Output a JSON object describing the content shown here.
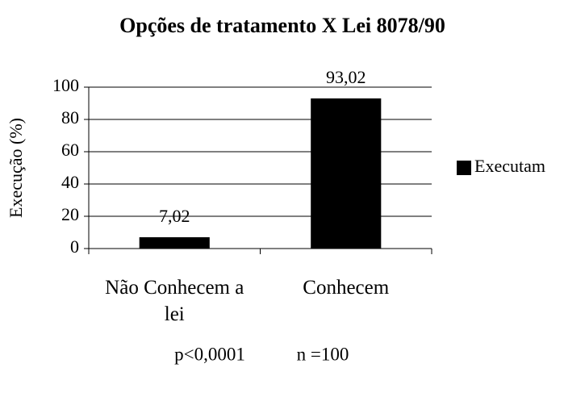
{
  "chart_data": {
    "type": "bar",
    "title": "Opções de tratamento X Lei 8078/90",
    "y_label": "Execução (%)",
    "categories": [
      "Não Conhecem a lei",
      "Conhecem"
    ],
    "series": [
      {
        "name": "Executam",
        "color": "#000000",
        "values": [
          7.02,
          93.02
        ],
        "value_labels": [
          "7,02",
          "93,02"
        ]
      }
    ],
    "ylim": [
      0,
      100
    ],
    "yticks": [
      0,
      20,
      40,
      60,
      80,
      100
    ],
    "grid": true,
    "legend": "right",
    "annotations": [
      "p<0,0001",
      "n =100"
    ]
  }
}
